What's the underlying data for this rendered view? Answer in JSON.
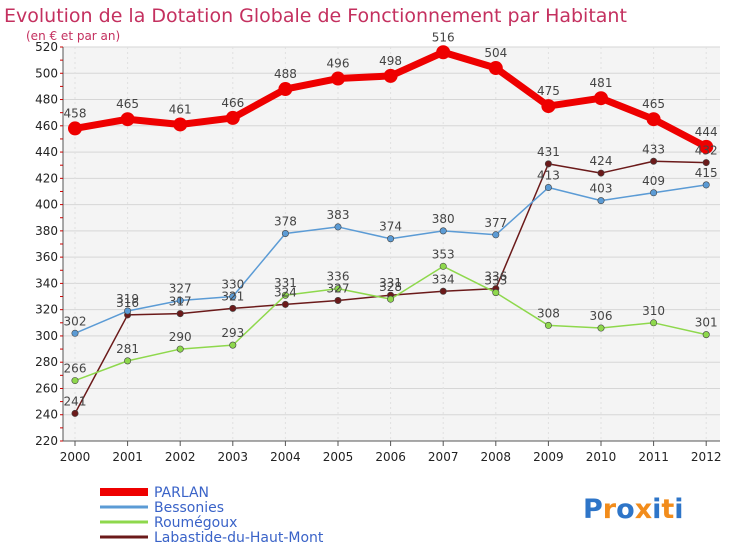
{
  "chart_data": {
    "type": "line",
    "title": "Evolution de la Dotation Globale de Fonctionnement par Habitant",
    "subtitle": "(en € et par an)",
    "x": [
      "2000",
      "2001",
      "2002",
      "2003",
      "2004",
      "2005",
      "2006",
      "2007",
      "2008",
      "2009",
      "2010",
      "2011",
      "2012"
    ],
    "ylim": [
      220,
      520
    ],
    "yticks": [
      220,
      240,
      260,
      280,
      300,
      320,
      340,
      360,
      380,
      400,
      420,
      440,
      460,
      480,
      500,
      520
    ],
    "grid": true,
    "legend_position": "bottom-left",
    "series": [
      {
        "name": "PARLAN",
        "color": "#ee0000",
        "values": [
          458,
          465,
          461,
          466,
          488,
          496,
          498,
          516,
          504,
          475,
          481,
          465,
          444
        ]
      },
      {
        "name": "Bessonies",
        "color": "#5b9bd5",
        "values": [
          302,
          319,
          327,
          330,
          378,
          383,
          374,
          380,
          377,
          413,
          403,
          409,
          415
        ]
      },
      {
        "name": "Roumégoux",
        "color": "#8ed84c",
        "values": [
          266,
          281,
          290,
          293,
          331,
          336,
          328,
          353,
          333,
          308,
          306,
          310,
          301
        ]
      },
      {
        "name": "Labastide-du-Haut-Mont",
        "color": "#6b1a1a",
        "values": [
          241,
          316,
          317,
          321,
          324,
          327,
          331,
          334,
          336,
          431,
          424,
          433,
          432
        ]
      }
    ]
  },
  "brand": {
    "text": "Proxiti",
    "colors": [
      "#2e75c8",
      "#f28c1b",
      "#2e75c8",
      "#f28c1b",
      "#2e75c8",
      "#f28c1b",
      "#2e75c8"
    ]
  }
}
